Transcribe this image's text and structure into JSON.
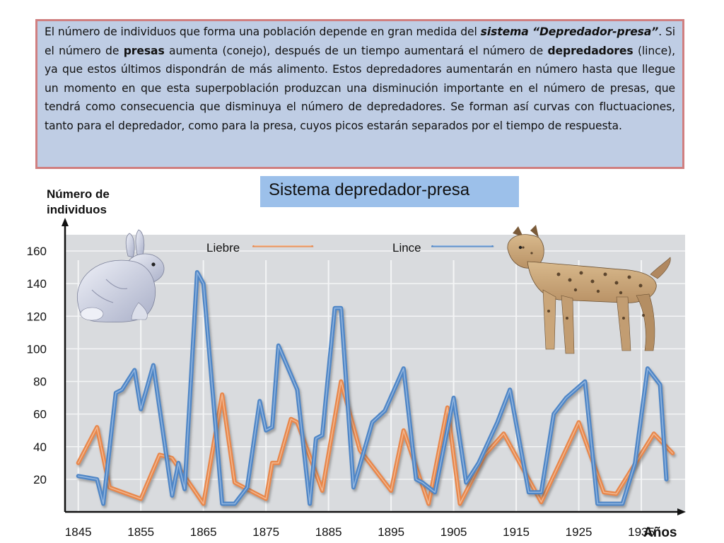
{
  "intro": {
    "p1": "El número de individuos que forma una población depende en gran medida del ",
    "p2": "sistema “Depredador-presa”",
    "p3": ". Si el número de ",
    "p4": "presas",
    "p5": " aumenta (conejo), después de un tiempo aumentará el número de ",
    "p6": "depredadores",
    "p7": " (lince), ya que estos últimos dispondrán de más alimento. Estos depredadores aumentarán en número hasta que llegue un momento en que esta superpoblación produzcan una disminución importante en el número de presas, que tendrá como consecuencia que disminuya el número de depredadores. Se forman así curvas con fluctuaciones, tanto para el depredador, como para la presa, cuyos picos estarán separados por el tiempo de respuesta."
  },
  "title": "Sistema depredador-presa",
  "colors": {
    "liebre": "#e8874c",
    "lince": "#4f86c6",
    "title_bg": "#9cc0ea",
    "intro_bg": "#bfcde4",
    "intro_border": "#d07f80",
    "plot_bg": "#d9dbde",
    "grid": "#f4f5f6"
  },
  "icons": {
    "rabbit": "hare-illustration",
    "lynx": "lynx-illustration"
  },
  "chart_data": {
    "type": "line",
    "title": "Sistema depredador-presa",
    "ylabel_lines": [
      "Número de",
      "individuos"
    ],
    "xlabel": "Años",
    "x_ticks": [
      "1845",
      "1855",
      "1865",
      "1875",
      "1885",
      "1895",
      "1905",
      "1915",
      "1925",
      "1935"
    ],
    "y_ticks": [
      "20",
      "40",
      "60",
      "80",
      "100",
      "120",
      "140",
      "160"
    ],
    "ylim": [
      0,
      170
    ],
    "xlim": [
      1843,
      1942
    ],
    "grid": true,
    "legend_position": "top",
    "series": [
      {
        "name": "Liebre",
        "color": "#e8874c",
        "points": [
          [
            1845,
            30
          ],
          [
            1848,
            52
          ],
          [
            1850,
            15
          ],
          [
            1855,
            8
          ],
          [
            1858,
            35
          ],
          [
            1860,
            33
          ],
          [
            1865,
            5
          ],
          [
            1868,
            72
          ],
          [
            1870,
            18
          ],
          [
            1875,
            8
          ],
          [
            1876,
            30
          ],
          [
            1877,
            30
          ],
          [
            1879,
            57
          ],
          [
            1880,
            55
          ],
          [
            1884,
            13
          ],
          [
            1887,
            80
          ],
          [
            1890,
            38
          ],
          [
            1895,
            13
          ],
          [
            1897,
            50
          ],
          [
            1901,
            5
          ],
          [
            1904,
            64
          ],
          [
            1906,
            5
          ],
          [
            1910,
            35
          ],
          [
            1913,
            48
          ],
          [
            1917,
            20
          ],
          [
            1919,
            6
          ],
          [
            1925,
            55
          ],
          [
            1929,
            12
          ],
          [
            1931,
            11
          ],
          [
            1937,
            48
          ],
          [
            1940,
            36
          ]
        ]
      },
      {
        "name": "Lince",
        "color": "#4f86c6",
        "points": [
          [
            1845,
            22
          ],
          [
            1848,
            20
          ],
          [
            1849,
            5
          ],
          [
            1851,
            73
          ],
          [
            1852,
            75
          ],
          [
            1854,
            87
          ],
          [
            1855,
            63
          ],
          [
            1857,
            90
          ],
          [
            1860,
            10
          ],
          [
            1861,
            30
          ],
          [
            1862,
            14
          ],
          [
            1864,
            147
          ],
          [
            1865,
            140
          ],
          [
            1868,
            5
          ],
          [
            1870,
            5
          ],
          [
            1872,
            15
          ],
          [
            1874,
            68
          ],
          [
            1875,
            50
          ],
          [
            1876,
            52
          ],
          [
            1877,
            102
          ],
          [
            1880,
            75
          ],
          [
            1882,
            5
          ],
          [
            1883,
            45
          ],
          [
            1884,
            47
          ],
          [
            1886,
            125
          ],
          [
            1887,
            125
          ],
          [
            1889,
            15
          ],
          [
            1892,
            55
          ],
          [
            1894,
            62
          ],
          [
            1897,
            88
          ],
          [
            1899,
            20
          ],
          [
            1900,
            18
          ],
          [
            1902,
            12
          ],
          [
            1905,
            70
          ],
          [
            1907,
            18
          ],
          [
            1909,
            30
          ],
          [
            1912,
            55
          ],
          [
            1914,
            75
          ],
          [
            1917,
            12
          ],
          [
            1919,
            12
          ],
          [
            1921,
            60
          ],
          [
            1923,
            70
          ],
          [
            1926,
            80
          ],
          [
            1928,
            5
          ],
          [
            1932,
            5
          ],
          [
            1934,
            30
          ],
          [
            1936,
            88
          ],
          [
            1938,
            78
          ],
          [
            1939,
            20
          ]
        ]
      }
    ]
  }
}
